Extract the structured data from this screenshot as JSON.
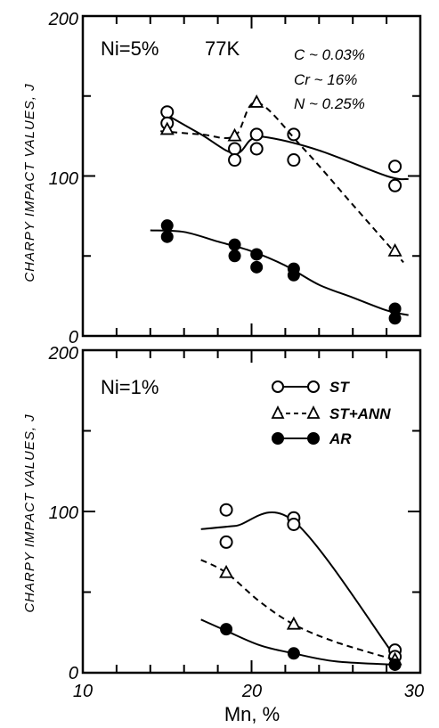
{
  "chart_data": [
    {
      "type": "scatter",
      "panel": "top",
      "xlabel": "",
      "ylabel": "CHARPY IMPACT VALUES, J",
      "xlim": [
        10,
        30
      ],
      "ylim": [
        0,
        200
      ],
      "yticks": [
        "0",
        "100",
        "200"
      ],
      "annotations": [
        "Ni=5%",
        "77K",
        "C ~ 0.03%",
        "Cr ~ 16%",
        "N ~ 0.25%"
      ],
      "series": [
        {
          "key": "st",
          "marker": "open-circle",
          "line": "solid",
          "points": [
            [
              15,
              140
            ],
            [
              15,
              133
            ],
            [
              19,
              117
            ],
            [
              19,
              110
            ],
            [
              20.3,
              126
            ],
            [
              20.3,
              117
            ],
            [
              22.5,
              126
            ],
            [
              22.5,
              110
            ],
            [
              28.5,
              106
            ],
            [
              28.5,
              94
            ]
          ],
          "fit": [
            [
              15,
              138
            ],
            [
              17,
              126
            ],
            [
              19,
              114
            ],
            [
              20,
              123
            ],
            [
              21,
              124
            ],
            [
              24,
              116
            ],
            [
              28,
              100
            ],
            [
              29.3,
              98
            ]
          ]
        },
        {
          "key": "st_ann",
          "marker": "open-triangle",
          "line": "dashed",
          "points": [
            [
              15,
              129
            ],
            [
              19,
              125
            ],
            [
              20.3,
              146
            ],
            [
              28.5,
              53
            ]
          ],
          "fit": [
            [
              14.6,
              128
            ],
            [
              17,
              126
            ],
            [
              19,
              125
            ],
            [
              20.3,
              146
            ],
            [
              23,
              118
            ],
            [
              26,
              82
            ],
            [
              29,
              46
            ]
          ]
        },
        {
          "key": "ar",
          "marker": "filled-circle",
          "line": "solid",
          "points": [
            [
              15,
              69
            ],
            [
              15,
              62
            ],
            [
              19,
              57
            ],
            [
              19,
              50
            ],
            [
              20.3,
              51
            ],
            [
              20.3,
              43
            ],
            [
              22.5,
              42
            ],
            [
              22.5,
              38
            ],
            [
              28.5,
              17
            ],
            [
              28.5,
              11
            ]
          ],
          "fit": [
            [
              14,
              66
            ],
            [
              16,
              65
            ],
            [
              18,
              59
            ],
            [
              20,
              53
            ],
            [
              22,
              44
            ],
            [
              24,
              32
            ],
            [
              26,
              24
            ],
            [
              28,
              16
            ],
            [
              29.3,
              13
            ]
          ]
        }
      ]
    },
    {
      "type": "scatter",
      "panel": "bottom",
      "xlabel": "Mn, %",
      "ylabel": "CHARPY IMPACT VALUES, J",
      "xlim": [
        10,
        30
      ],
      "ylim": [
        0,
        200
      ],
      "xticks": [
        "10",
        "20",
        "30"
      ],
      "yticks": [
        "0",
        "100",
        "200"
      ],
      "annotations": [
        "Ni=1%"
      ],
      "legend": {
        "placement": "top-right",
        "entries": [
          "ST",
          "ST+ANN",
          "AR"
        ]
      },
      "series": [
        {
          "key": "st",
          "name": "ST",
          "marker": "open-circle",
          "line": "solid",
          "points": [
            [
              18.5,
              101
            ],
            [
              18.5,
              81
            ],
            [
              22.5,
              96
            ],
            [
              22.5,
              92
            ],
            [
              28.5,
              14
            ],
            [
              28.5,
              10
            ]
          ],
          "fit": [
            [
              17,
              89
            ],
            [
              19,
              91
            ],
            [
              22.5,
              94
            ],
            [
              28.5,
              10
            ]
          ]
        },
        {
          "key": "st_ann",
          "name": "ST+ANN",
          "marker": "open-triangle",
          "line": "dashed",
          "points": [
            [
              18.5,
              62
            ],
            [
              22.5,
              30
            ],
            [
              28.5,
              8
            ]
          ],
          "fit": [
            [
              17,
              70
            ],
            [
              18.5,
              62
            ],
            [
              20.5,
              44
            ],
            [
              22.5,
              30
            ],
            [
              25,
              19
            ],
            [
              28.5,
              8
            ]
          ]
        },
        {
          "key": "ar",
          "name": "AR",
          "marker": "filled-circle",
          "line": "solid",
          "points": [
            [
              18.5,
              27
            ],
            [
              22.5,
              12
            ],
            [
              28.5,
              5
            ]
          ],
          "fit": [
            [
              17,
              33
            ],
            [
              18.5,
              26
            ],
            [
              20.5,
              17
            ],
            [
              22.5,
              12
            ],
            [
              25,
              7
            ],
            [
              28.5,
              5
            ]
          ]
        }
      ]
    }
  ]
}
